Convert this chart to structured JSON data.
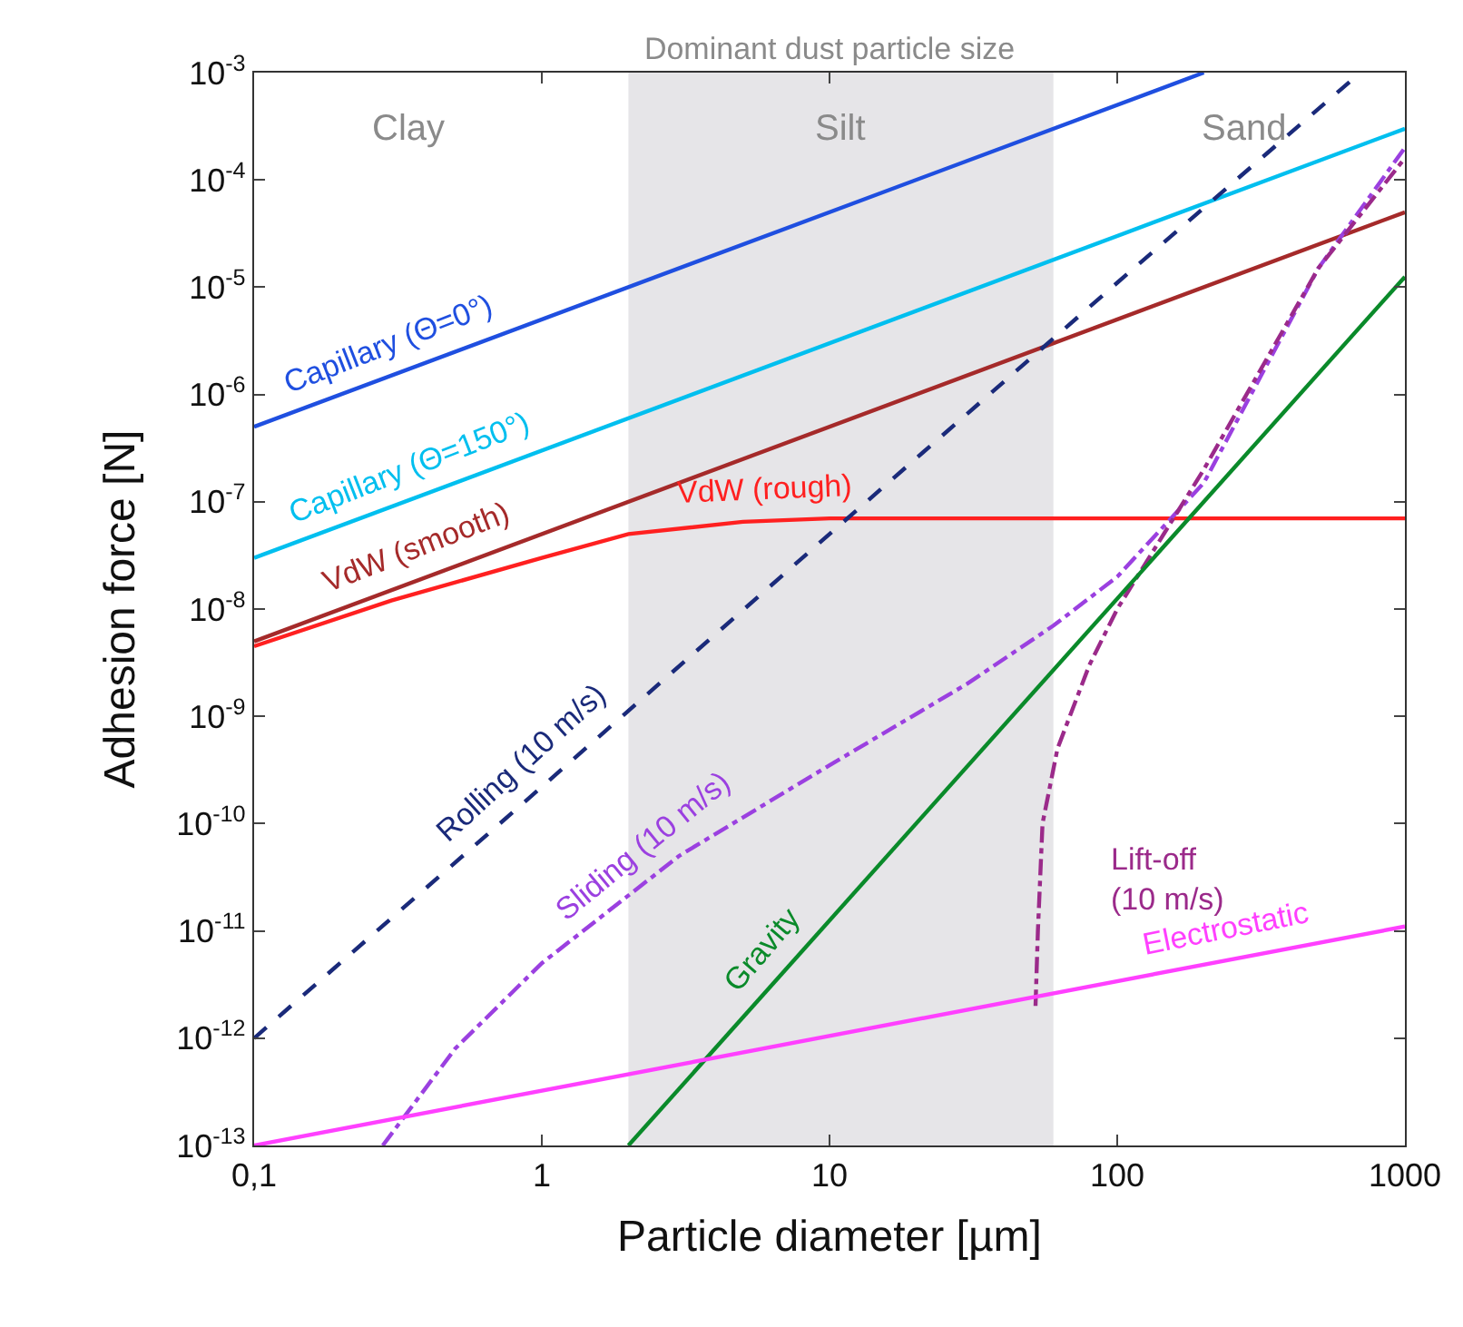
{
  "chart_data": {
    "type": "line",
    "title": "Dominant dust particle size",
    "xlabel": "Particle diameter [µm]",
    "ylabel": "Adhesion force [N]",
    "log": "xy",
    "grid": false,
    "legend": false,
    "marker": "none",
    "xlim": [
      0.1,
      1000
    ],
    "ylim": [
      1e-13,
      0.001
    ],
    "xticks": [
      {
        "value": 0.1,
        "label": "0,1"
      },
      1,
      10,
      100,
      1000
    ],
    "yticks": [
      {
        "value": 1e-13,
        "label": "10$^{-13}$"
      },
      {
        "value": 1e-12,
        "label": "10$^{-12}$"
      },
      {
        "value": 1e-11,
        "label": "10$^{-11}$"
      },
      {
        "value": 1e-10,
        "label": "10$^{-10}$"
      },
      {
        "value": 1e-09,
        "label": "10$^{-9}$"
      },
      {
        "value": 1e-08,
        "label": "10$^{-8}$"
      },
      {
        "value": 1e-07,
        "label": "10$^{-7}$"
      },
      {
        "value": 1e-06,
        "label": "10$^{-6}$"
      },
      {
        "value": 1e-05,
        "label": "10$^{-5}$"
      },
      {
        "value": 0.0001,
        "label": "10$^{-4}$"
      },
      {
        "value": 0.001,
        "label": "10$^{-3}$"
      }
    ],
    "bands": [
      {
        "axis": "x",
        "from": 2,
        "to": 60,
        "label": "Silt",
        "color": "#e6e5e8"
      }
    ],
    "annotations": [
      "Clay",
      "Sand"
    ],
    "series": [
      {
        "name": "Capillary (Θ=0°)",
        "color": "#1f4fe0",
        "line_style": "solid",
        "x": [
          0.1,
          200
        ],
        "values": [
          5e-07,
          0.001
        ]
      },
      {
        "name": "Capillary (Θ=150°)",
        "color": "#00bfef",
        "line_style": "solid",
        "x": [
          0.1,
          1000
        ],
        "values": [
          3e-08,
          0.0003
        ]
      },
      {
        "name": "VdW (smooth)",
        "color": "#a52a2a",
        "line_style": "solid",
        "x": [
          0.1,
          1000
        ],
        "values": [
          5e-09,
          5e-05
        ]
      },
      {
        "name": "VdW (rough)",
        "color": "#ff2020",
        "line_style": "solid",
        "x": [
          0.1,
          0.3,
          1,
          2,
          5,
          10,
          1000
        ],
        "values": [
          4.5e-09,
          1.2e-08,
          3e-08,
          5e-08,
          6.5e-08,
          7e-08,
          7e-08
        ]
      },
      {
        "name": "Rolling (10 m/s)",
        "color": "#1a2a7a",
        "line_style": "dashed",
        "x": [
          0.1,
          1,
          10,
          100,
          700
        ],
        "values": [
          1e-12,
          2.2e-10,
          5e-08,
          1.1e-05,
          0.001
        ]
      },
      {
        "name": "Sliding (10 m/s)",
        "color": "#9b40e0",
        "line_style": "dashdot",
        "x": [
          0.28,
          0.5,
          1,
          3,
          10,
          30,
          60,
          100,
          200,
          500,
          1000
        ],
        "values": [
          1e-13,
          8e-13,
          5e-12,
          5e-11,
          3.5e-10,
          2e-09,
          7e-09,
          2e-08,
          1.5e-07,
          1.5e-05,
          0.0002
        ]
      },
      {
        "name": "Lift-off (10 m/s)",
        "color": "#9b2a8a",
        "line_style": "dashdot",
        "x": [
          52,
          53,
          55,
          62,
          80,
          100,
          200,
          500,
          1000
        ],
        "values": [
          2e-12,
          1e-11,
          1e-10,
          5e-10,
          3e-09,
          1e-08,
          2e-07,
          1.5e-05,
          0.00016
        ]
      },
      {
        "name": "Gravity",
        "color": "#0a8a2a",
        "line_style": "solid",
        "x": [
          2,
          1000
        ],
        "values": [
          1e-13,
          1.25e-05
        ]
      },
      {
        "name": "Electrostatic",
        "color": "#ff40ff",
        "line_style": "solid",
        "x": [
          0.1,
          1000
        ],
        "values": [
          1e-13,
          1.1e-11
        ]
      }
    ]
  }
}
